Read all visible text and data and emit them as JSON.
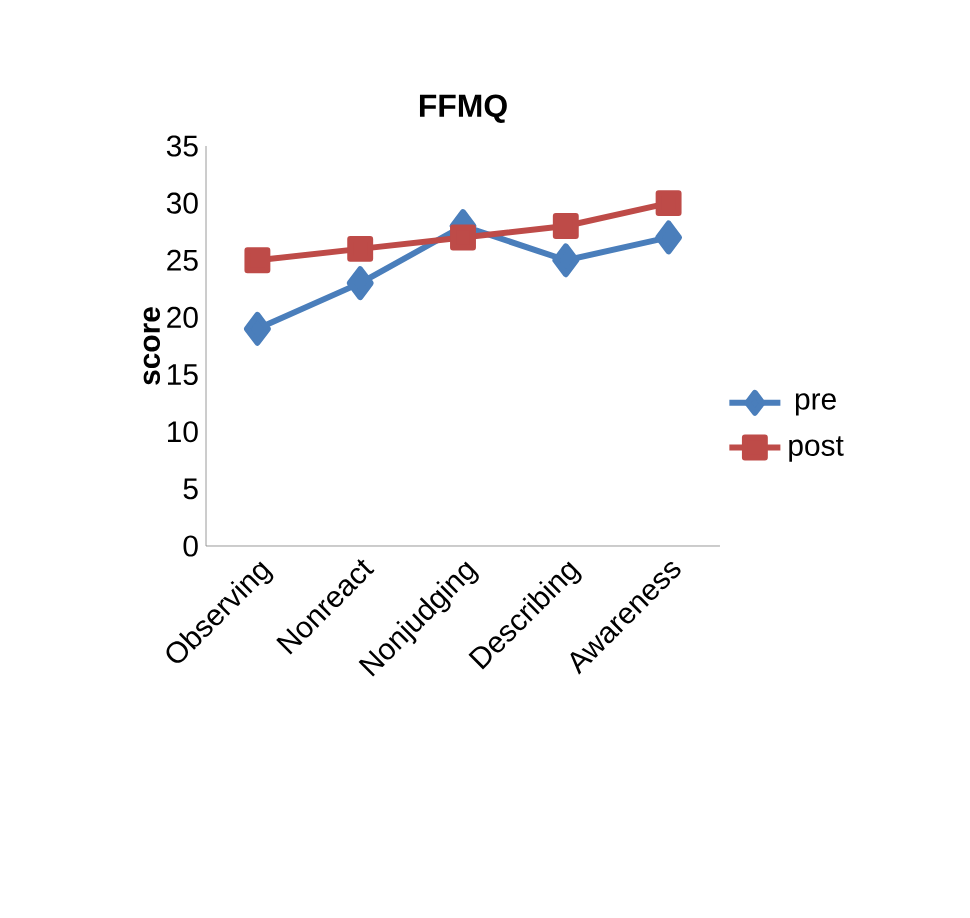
{
  "chart_data": {
    "type": "line",
    "title": "FFMQ",
    "ylabel": "score",
    "categories": [
      "Observing",
      "Nonreact",
      "Nonjudging",
      "Describing",
      "Awareness"
    ],
    "series": [
      {
        "name": "pre",
        "color": "#4a7ebb",
        "marker": "diamond",
        "values": [
          19,
          23,
          28,
          25,
          27
        ]
      },
      {
        "name": "post",
        "color": "#be4b48",
        "marker": "square",
        "values": [
          25,
          26,
          27,
          28,
          30
        ]
      }
    ],
    "ylim": [
      0,
      35
    ],
    "yticks": [
      0,
      5,
      10,
      15,
      20,
      25,
      30,
      35
    ],
    "grid": false,
    "legend": "right"
  }
}
